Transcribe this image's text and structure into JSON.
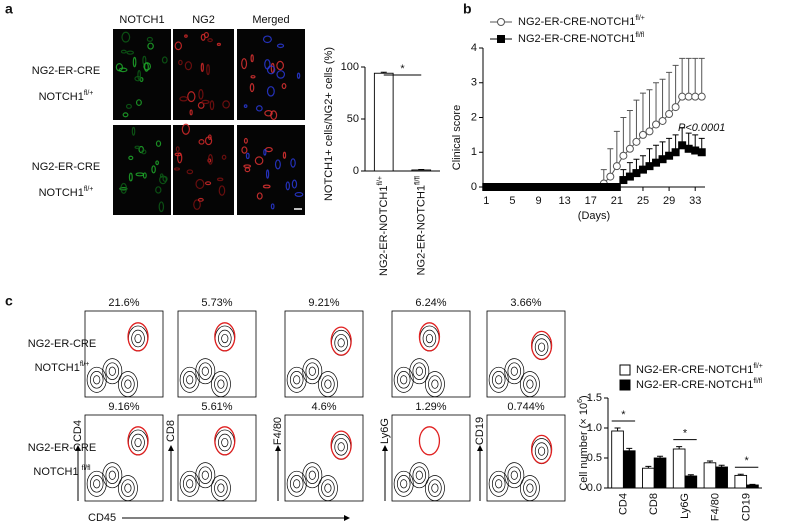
{
  "panel_labels": [
    "a",
    "b",
    "c"
  ],
  "microscopy": {
    "columns": [
      "NOTCH1",
      "NG2",
      "Merged"
    ],
    "rows": [
      {
        "line1": "NG2-ER-CRE",
        "line2": "NOTCH1",
        "superscript": "fl/+"
      },
      {
        "line1": "NG2-ER-CRE",
        "line2": "NOTCH1",
        "superscript": "fl/+"
      }
    ]
  },
  "flow": {
    "rows": [
      {
        "line1": "NG2-ER-CRE",
        "line2": "NOTCH1",
        "superscript": "fl/+",
        "percentages": [
          "21.6%",
          "5.73%",
          "9.21%",
          "6.24%",
          "3.66%"
        ]
      },
      {
        "line1": "NG2-ER-CRE",
        "line2": "NOTCH1 ",
        "superscript": "fl/fl",
        "percentages": [
          "9.16%",
          "5.61%",
          "4.6%",
          "1.29%",
          "0.744%"
        ]
      }
    ],
    "y_labels": [
      "CD4",
      "CD8",
      "F4/80",
      "Ly6G",
      "CD19"
    ],
    "x_label": "CD45"
  },
  "chart_data": [
    {
      "type": "bar",
      "ylabel": "NOTCH1+ cells/NG2+ cells (%)",
      "categories": [
        "NG2-ER-NOTCH1",
        "NG2-ER-NOTCH1"
      ],
      "category_superscripts": [
        "fl/+",
        "fl/fl"
      ],
      "values": [
        94,
        1
      ],
      "errors": [
        1,
        0.5
      ],
      "color": "#ffffff",
      "ylim": [
        0,
        100
      ],
      "yticks": [
        0,
        50,
        100
      ],
      "significance_labels": [
        "*"
      ]
    },
    {
      "type": "line",
      "xlabel": "(Days)",
      "ylabel": "Clinical score",
      "annotation": "P<0.0001",
      "x": [
        1,
        2,
        3,
        4,
        5,
        6,
        7,
        8,
        9,
        10,
        11,
        12,
        13,
        14,
        15,
        16,
        17,
        18,
        19,
        20,
        21,
        22,
        23,
        24,
        25,
        26,
        27,
        28,
        29,
        30,
        31,
        32,
        33,
        34
      ],
      "xlim": [
        0.5,
        34.5
      ],
      "xticks": [
        1,
        5,
        9,
        13,
        17,
        21,
        25,
        29,
        33
      ],
      "ylim": [
        0,
        4
      ],
      "yticks": [
        0,
        1,
        2,
        3,
        4
      ],
      "series": [
        {
          "name": "NG2-ER-CRE-NOTCH1",
          "name_superscript": "fl/+",
          "color": "#555555",
          "marker": "circle",
          "marker_fill": "#ffffff",
          "values": [
            0,
            0,
            0,
            0,
            0,
            0,
            0,
            0,
            0,
            0,
            0,
            0,
            0,
            0,
            0,
            0,
            0,
            0,
            0.1,
            0.3,
            0.6,
            0.9,
            1.1,
            1.3,
            1.5,
            1.6,
            1.8,
            1.9,
            2.1,
            2.3,
            2.6,
            2.6,
            2.6,
            2.6
          ],
          "errors": [
            null,
            null,
            null,
            null,
            null,
            null,
            null,
            null,
            null,
            null,
            null,
            null,
            null,
            null,
            null,
            null,
            null,
            null,
            0.4,
            0.8,
            1.0,
            1.1,
            1.1,
            1.2,
            1.2,
            1.2,
            1.2,
            1.2,
            1.2,
            1.2,
            1.1,
            1.1,
            1.1,
            1.1
          ]
        },
        {
          "name": "NG2-ER-CRE-NOTCH1",
          "name_superscript": "fl/fl",
          "color": "#000000",
          "marker": "square",
          "marker_fill": "#000000",
          "values": [
            0,
            0,
            0,
            0,
            0,
            0,
            0,
            0,
            0,
            0,
            0,
            0,
            0,
            0,
            0,
            0,
            0,
            0,
            0,
            0,
            0,
            0.2,
            0.3,
            0.4,
            0.5,
            0.6,
            0.7,
            0.8,
            0.9,
            1.0,
            1.2,
            1.1,
            1.05,
            1.0
          ],
          "errors": [
            null,
            null,
            null,
            null,
            null,
            null,
            null,
            null,
            null,
            null,
            null,
            null,
            null,
            null,
            null,
            null,
            null,
            null,
            null,
            null,
            null,
            0.3,
            0.4,
            0.4,
            0.4,
            0.5,
            0.5,
            0.5,
            0.5,
            0.5,
            0.5,
            0.45,
            0.45,
            0.4
          ]
        }
      ]
    },
    {
      "type": "bar",
      "ylabel": "Cell number (× 10",
      "ylabel_superscript": "6",
      "ylabel_suffix": ")",
      "categories": [
        "CD4",
        "CD8",
        "Ly6G",
        "F4/80",
        "CD19"
      ],
      "ylim": [
        0,
        1.5
      ],
      "yticks": [
        {
          "value": 0,
          "label": "0.0"
        },
        {
          "value": 0.5,
          "label": "0.5"
        },
        {
          "value": 1,
          "label": "1.0"
        },
        {
          "value": 1.5,
          "label": "1.5"
        }
      ],
      "series": [
        {
          "name": "NG2-ER-CRE-NOTCH1",
          "name_superscript": "fl/+",
          "color": "#ffffff",
          "values": [
            0.95,
            0.33,
            0.65,
            0.42,
            0.21
          ],
          "errors": [
            0.05,
            0.03,
            0.04,
            0.03,
            0.02
          ]
        },
        {
          "name": "NG2-ER-CRE-NOTCH1",
          "name_superscript": "fl/fl",
          "color": "#000000",
          "values": [
            0.62,
            0.5,
            0.2,
            0.35,
            0.05
          ],
          "errors": [
            0.04,
            0.03,
            0.02,
            0.03,
            0.01
          ]
        }
      ],
      "significance_labels": [
        "*",
        null,
        "*",
        null,
        "*"
      ]
    }
  ]
}
